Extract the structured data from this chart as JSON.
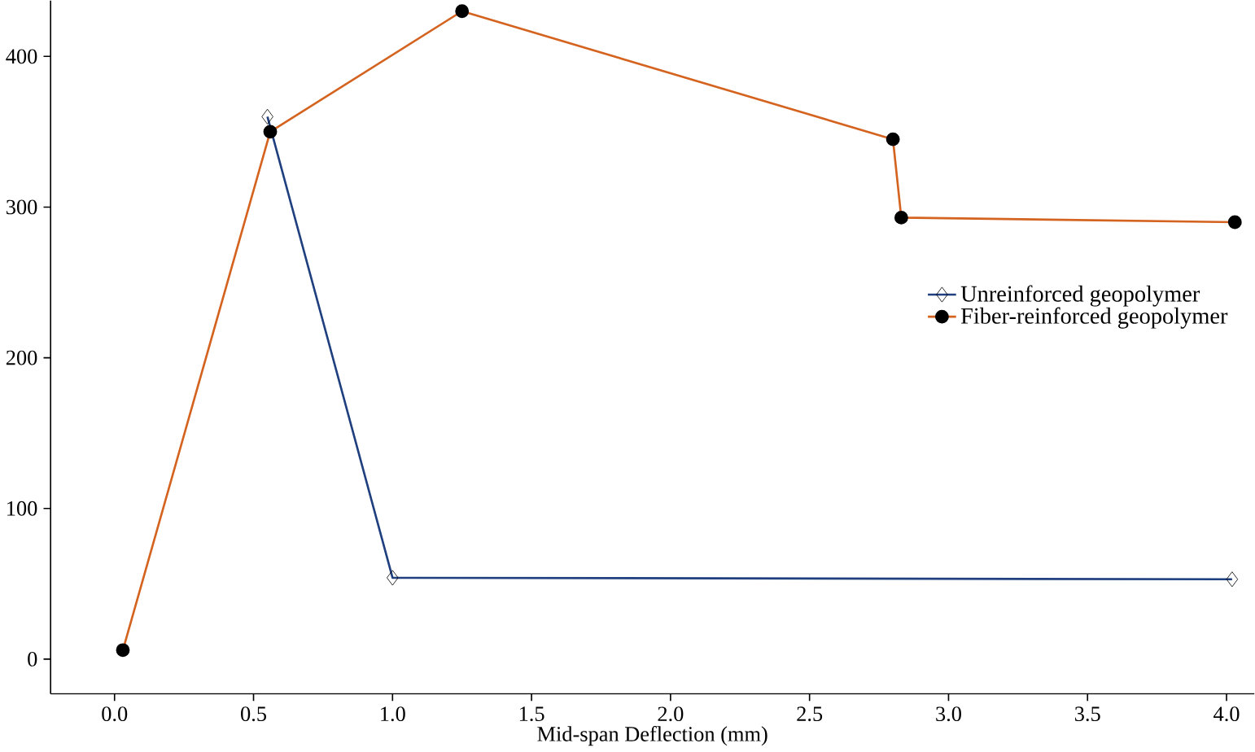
{
  "chart_data": {
    "type": "line",
    "xlabel": "Mid-span Deflection (mm)",
    "xlim": [
      -0.23,
      4.1
    ],
    "ylim": [
      -23,
      437
    ],
    "xticks": [
      {
        "value": 0,
        "label": "0.0"
      },
      {
        "value": 0.5,
        "label": "0.5"
      },
      {
        "value": 1,
        "label": "1.0"
      },
      {
        "value": 1.5,
        "label": "1.5"
      },
      {
        "value": 2,
        "label": "2.0"
      },
      {
        "value": 2.5,
        "label": "2.5"
      },
      {
        "value": 3,
        "label": "3.0"
      },
      {
        "value": 3.5,
        "label": "3.5"
      },
      {
        "value": 4,
        "label": "4.0"
      }
    ],
    "yticks": [
      0,
      100,
      200,
      300,
      400
    ],
    "grid": false,
    "legend": "right",
    "series": [
      {
        "name": "Unreinforced geopolymer",
        "color": "#1f3f7f",
        "marker": "diamond",
        "x": [
          0.55,
          1.0,
          4.02
        ],
        "values": [
          360,
          54,
          53
        ]
      },
      {
        "name": "Fiber-reinforced geopolymer",
        "color": "#d4631f",
        "marker": "circle",
        "x": [
          0.03,
          0.56,
          1.25,
          2.8,
          2.83,
          4.03
        ],
        "values": [
          6,
          350,
          430,
          345,
          293,
          290
        ]
      }
    ]
  }
}
